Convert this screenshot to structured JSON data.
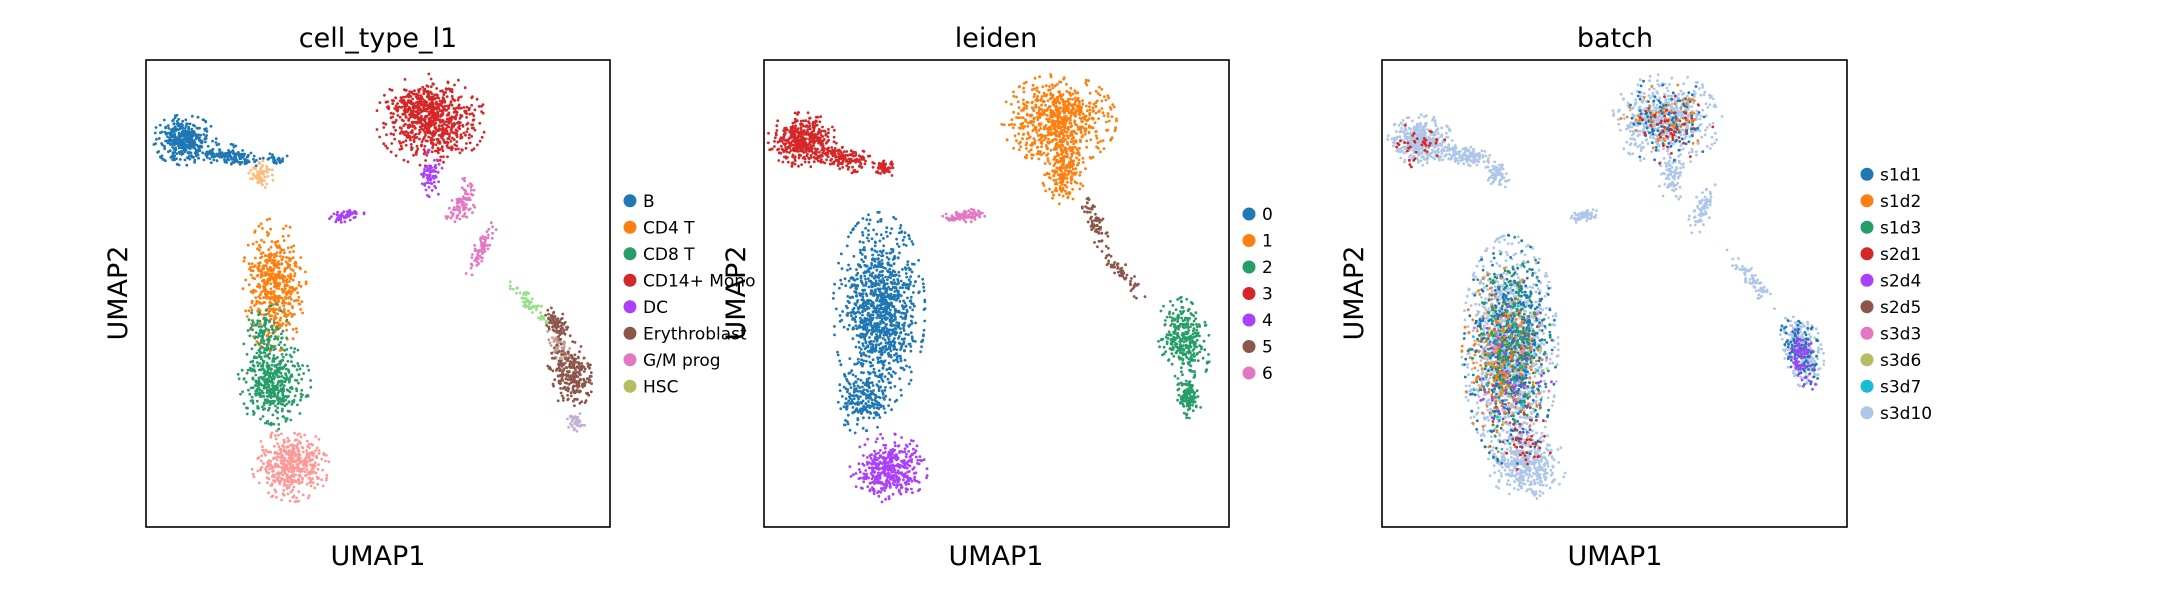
{
  "chart_data": [
    {
      "type": "scatter",
      "title": "cell_type_l1",
      "xlabel": "UMAP1",
      "ylabel": "UMAP2",
      "xticks": [],
      "yticks": [],
      "grid": false,
      "legend_position": "right",
      "legend": [
        {
          "label": "B",
          "color": "#1f77b4"
        },
        {
          "label": "CD4 T",
          "color": "#ff7f0e"
        },
        {
          "label": "CD8 T",
          "color": "#279e68"
        },
        {
          "label": "CD14+ Mono",
          "color": "#d62728"
        },
        {
          "label": "DC",
          "color": "#aa40fc"
        },
        {
          "label": "Erythroblast",
          "color": "#8c564b"
        },
        {
          "label": "G/M prog",
          "color": "#e377c2"
        },
        {
          "label": "HSC",
          "color": "#b5bd61"
        }
      ],
      "extra_colors_not_in_legend": [
        "#ffbb78",
        "#ff9896",
        "#aec7e8",
        "#c49c94",
        "#c5b0d5",
        "#98df8a"
      ]
    },
    {
      "type": "scatter",
      "title": "leiden",
      "xlabel": "UMAP1",
      "ylabel": "UMAP2",
      "xticks": [],
      "yticks": [],
      "grid": false,
      "legend_position": "right",
      "legend": [
        {
          "label": "0",
          "color": "#1f77b4"
        },
        {
          "label": "1",
          "color": "#ff7f0e"
        },
        {
          "label": "2",
          "color": "#279e68"
        },
        {
          "label": "3",
          "color": "#d62728"
        },
        {
          "label": "4",
          "color": "#aa40fc"
        },
        {
          "label": "5",
          "color": "#8c564b"
        },
        {
          "label": "6",
          "color": "#e377c2"
        }
      ]
    },
    {
      "type": "scatter",
      "title": "batch",
      "xlabel": "UMAP1",
      "ylabel": "UMAP2",
      "xticks": [],
      "yticks": [],
      "grid": false,
      "legend_position": "right",
      "legend": [
        {
          "label": "s1d1",
          "color": "#1f77b4"
        },
        {
          "label": "s1d2",
          "color": "#ff7f0e"
        },
        {
          "label": "s1d3",
          "color": "#279e68"
        },
        {
          "label": "s2d1",
          "color": "#d62728"
        },
        {
          "label": "s2d4",
          "color": "#aa40fc"
        },
        {
          "label": "s2d5",
          "color": "#8c564b"
        },
        {
          "label": "s3d3",
          "color": "#e377c2"
        },
        {
          "label": "s3d6",
          "color": "#b5bd61"
        },
        {
          "label": "s3d7",
          "color": "#17becf"
        },
        {
          "label": "s3d10",
          "color": "#aec7e8"
        }
      ]
    }
  ]
}
